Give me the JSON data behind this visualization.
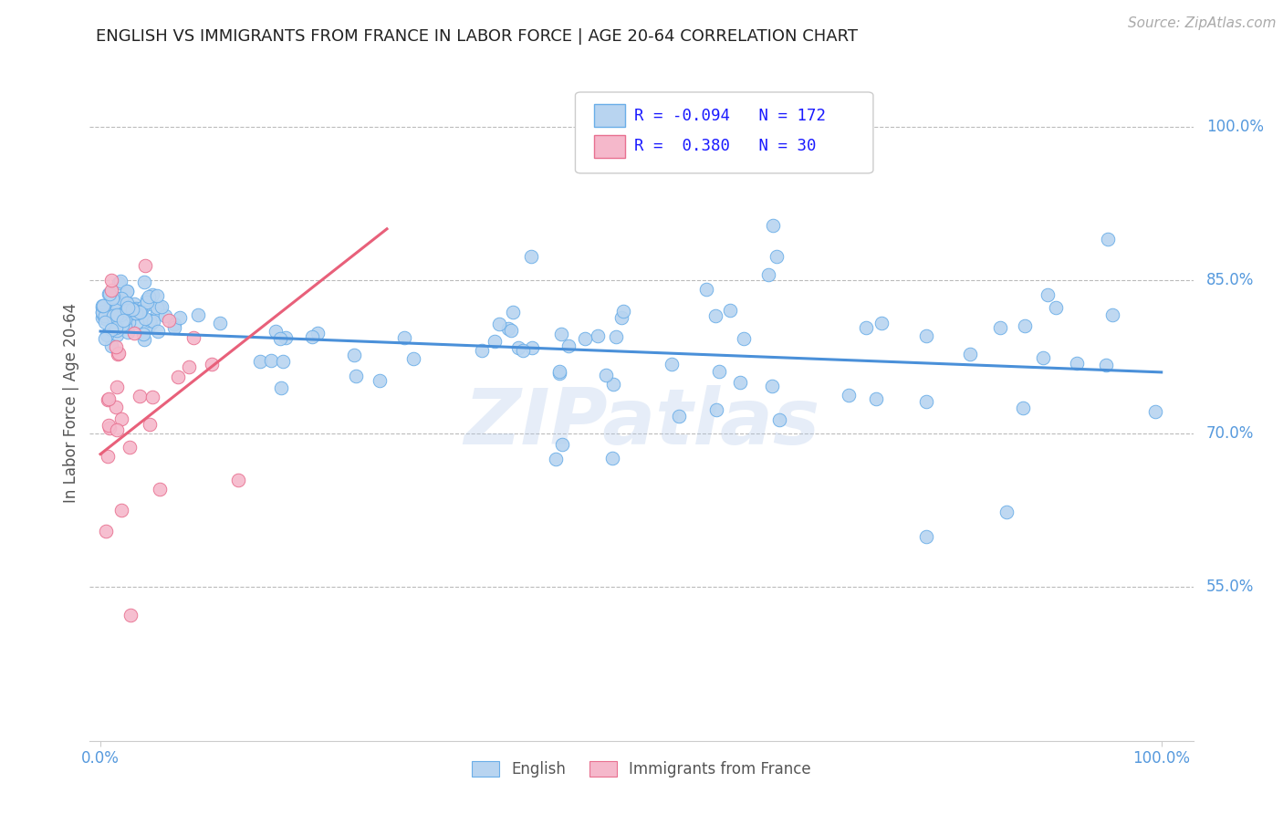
{
  "title": "ENGLISH VS IMMIGRANTS FROM FRANCE IN LABOR FORCE | AGE 20-64 CORRELATION CHART",
  "source": "Source: ZipAtlas.com",
  "ylabel": "In Labor Force | Age 20-64",
  "xlim": [
    -0.01,
    1.03
  ],
  "ylim": [
    0.4,
    1.06
  ],
  "ytick_vals": [
    0.55,
    0.7,
    0.85,
    1.0
  ],
  "ytick_labels": [
    "55.0%",
    "70.0%",
    "85.0%",
    "100.0%"
  ],
  "xtick_vals": [
    0.0,
    1.0
  ],
  "xtick_labels": [
    "0.0%",
    "100.0%"
  ],
  "r_english": -0.094,
  "n_english": 172,
  "r_french": 0.38,
  "n_french": 30,
  "english_fill": "#b8d4f0",
  "english_edge": "#6aaee8",
  "french_fill": "#f5b8cb",
  "french_edge": "#e87090",
  "english_line_color": "#4a90d9",
  "french_line_color": "#e8607a",
  "watermark": "ZIPatlas",
  "background_color": "#ffffff",
  "grid_color": "#bbbbbb",
  "title_color": "#222222",
  "axis_label_color": "#555555",
  "tick_label_color": "#5599dd",
  "source_color": "#aaaaaa",
  "legend_border_color": "#cccccc",
  "eng_trend_x0": 0.0,
  "eng_trend_x1": 1.0,
  "eng_trend_y0": 0.8,
  "eng_trend_y1": 0.76,
  "fr_trend_x0": 0.0,
  "fr_trend_x1": 0.27,
  "fr_trend_y0": 0.68,
  "fr_trend_y1": 0.9
}
